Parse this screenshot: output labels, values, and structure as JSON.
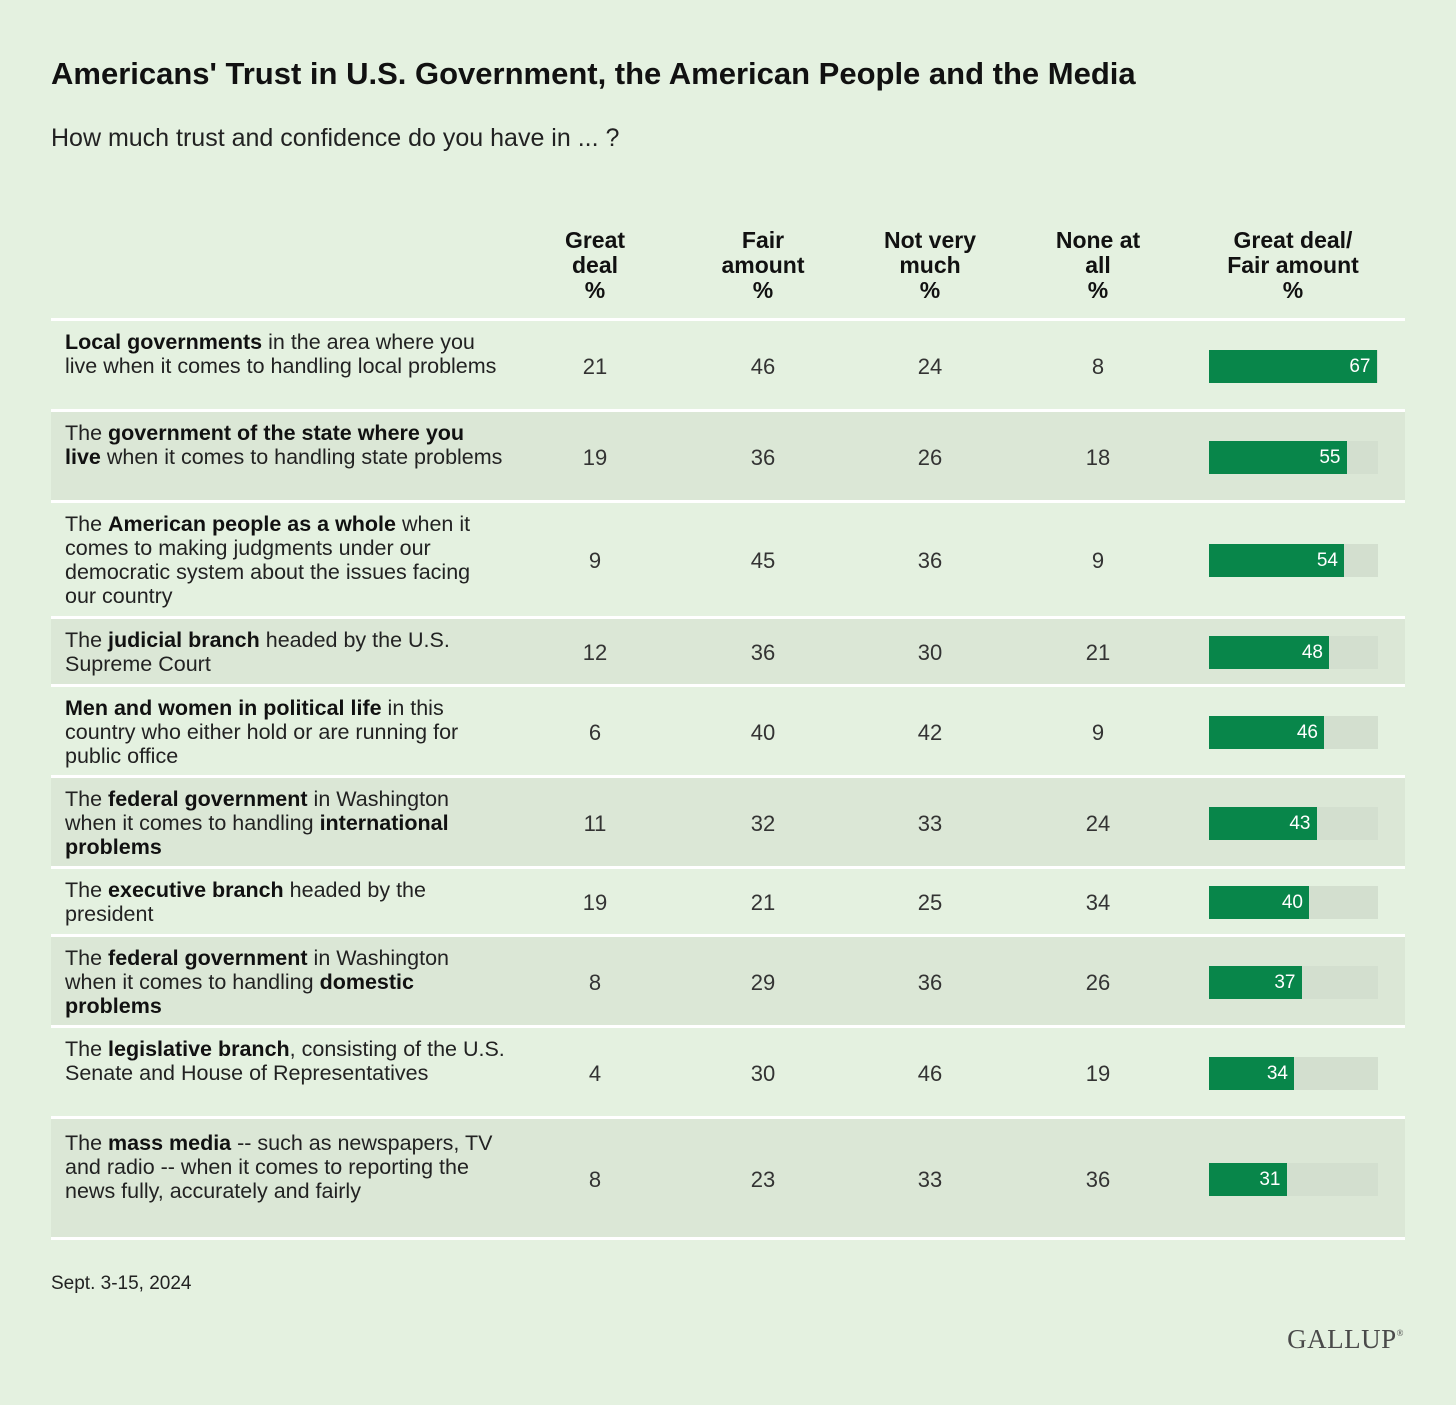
{
  "title": "Americans' Trust in U.S. Government, the American People and the Media",
  "subtitle": "How much trust and confidence do you have in ... ?",
  "note": "Sept. 3-15, 2024",
  "logo": "GALLUP",
  "logo_mark": "®",
  "colors": {
    "background": "#e4f1e0",
    "bar": "#08864a",
    "track": "#d3dfcf",
    "row_alt": "#dbe7d6"
  },
  "chart_data": {
    "type": "table",
    "title": "Americans' Trust in U.S. Government, the American People and the Media",
    "subtitle": "How much trust and confidence do you have in ... ?",
    "columns": [
      [
        "Great",
        "deal",
        "%"
      ],
      [
        "Fair",
        "amount",
        "%"
      ],
      [
        "Not very",
        "much",
        "%"
      ],
      [
        "None at",
        "all",
        "%"
      ],
      [
        "Great deal/",
        "Fair amount",
        "%"
      ]
    ],
    "rows": [
      {
        "label": [
          [
            "Local governments",
            true
          ],
          [
            " in the area where you live when it comes to handling local problems",
            false
          ]
        ],
        "great_deal": 21,
        "fair_amount": 46,
        "not_very_much": 24,
        "none_at_all": 8,
        "great_fair": 67
      },
      {
        "label": [
          [
            "The ",
            false
          ],
          [
            "government of the state where you live",
            true
          ],
          [
            " when it comes to handling state problems",
            false
          ]
        ],
        "great_deal": 19,
        "fair_amount": 36,
        "not_very_much": 26,
        "none_at_all": 18,
        "great_fair": 55
      },
      {
        "label": [
          [
            "The ",
            false
          ],
          [
            "American people as a whole",
            true
          ],
          [
            " when it comes to making judgments under our democratic system about the issues facing our country",
            false
          ]
        ],
        "great_deal": 9,
        "fair_amount": 45,
        "not_very_much": 36,
        "none_at_all": 9,
        "great_fair": 54
      },
      {
        "label": [
          [
            "The ",
            false
          ],
          [
            "judicial branch",
            true
          ],
          [
            " headed by the U.S. Supreme Court",
            false
          ]
        ],
        "great_deal": 12,
        "fair_amount": 36,
        "not_very_much": 30,
        "none_at_all": 21,
        "great_fair": 48
      },
      {
        "label": [
          [
            "Men and women in political life",
            true
          ],
          [
            " in this country who either hold or are running for public office",
            false
          ]
        ],
        "great_deal": 6,
        "fair_amount": 40,
        "not_very_much": 42,
        "none_at_all": 9,
        "great_fair": 46
      },
      {
        "label": [
          [
            "The ",
            false
          ],
          [
            "federal government",
            true
          ],
          [
            " in Washington when it comes to handling ",
            false
          ],
          [
            "international problems",
            true
          ]
        ],
        "great_deal": 11,
        "fair_amount": 32,
        "not_very_much": 33,
        "none_at_all": 24,
        "great_fair": 43
      },
      {
        "label": [
          [
            "The ",
            false
          ],
          [
            "executive branch",
            true
          ],
          [
            " headed by the president",
            false
          ]
        ],
        "great_deal": 19,
        "fair_amount": 21,
        "not_very_much": 25,
        "none_at_all": 34,
        "great_fair": 40
      },
      {
        "label": [
          [
            "The ",
            false
          ],
          [
            "federal government",
            true
          ],
          [
            " in Washington when it comes to handling ",
            false
          ],
          [
            "domestic problems",
            true
          ]
        ],
        "great_deal": 8,
        "fair_amount": 29,
        "not_very_much": 36,
        "none_at_all": 26,
        "great_fair": 37
      },
      {
        "label": [
          [
            "The ",
            false
          ],
          [
            "legislative branch",
            true
          ],
          [
            ", consisting of the U.S. Senate and House of Representatives",
            false
          ]
        ],
        "great_deal": 4,
        "fair_amount": 30,
        "not_very_much": 46,
        "none_at_all": 19,
        "great_fair": 34
      },
      {
        "label": [
          [
            "The ",
            false
          ],
          [
            "mass media",
            true
          ],
          [
            " -- such as newspapers, TV and radio -- when it comes to reporting the news fully, accurately and fairly",
            false
          ]
        ],
        "great_deal": 8,
        "fair_amount": 23,
        "not_very_much": 33,
        "none_at_all": 36,
        "great_fair": 31
      }
    ],
    "bar_max": 100
  }
}
